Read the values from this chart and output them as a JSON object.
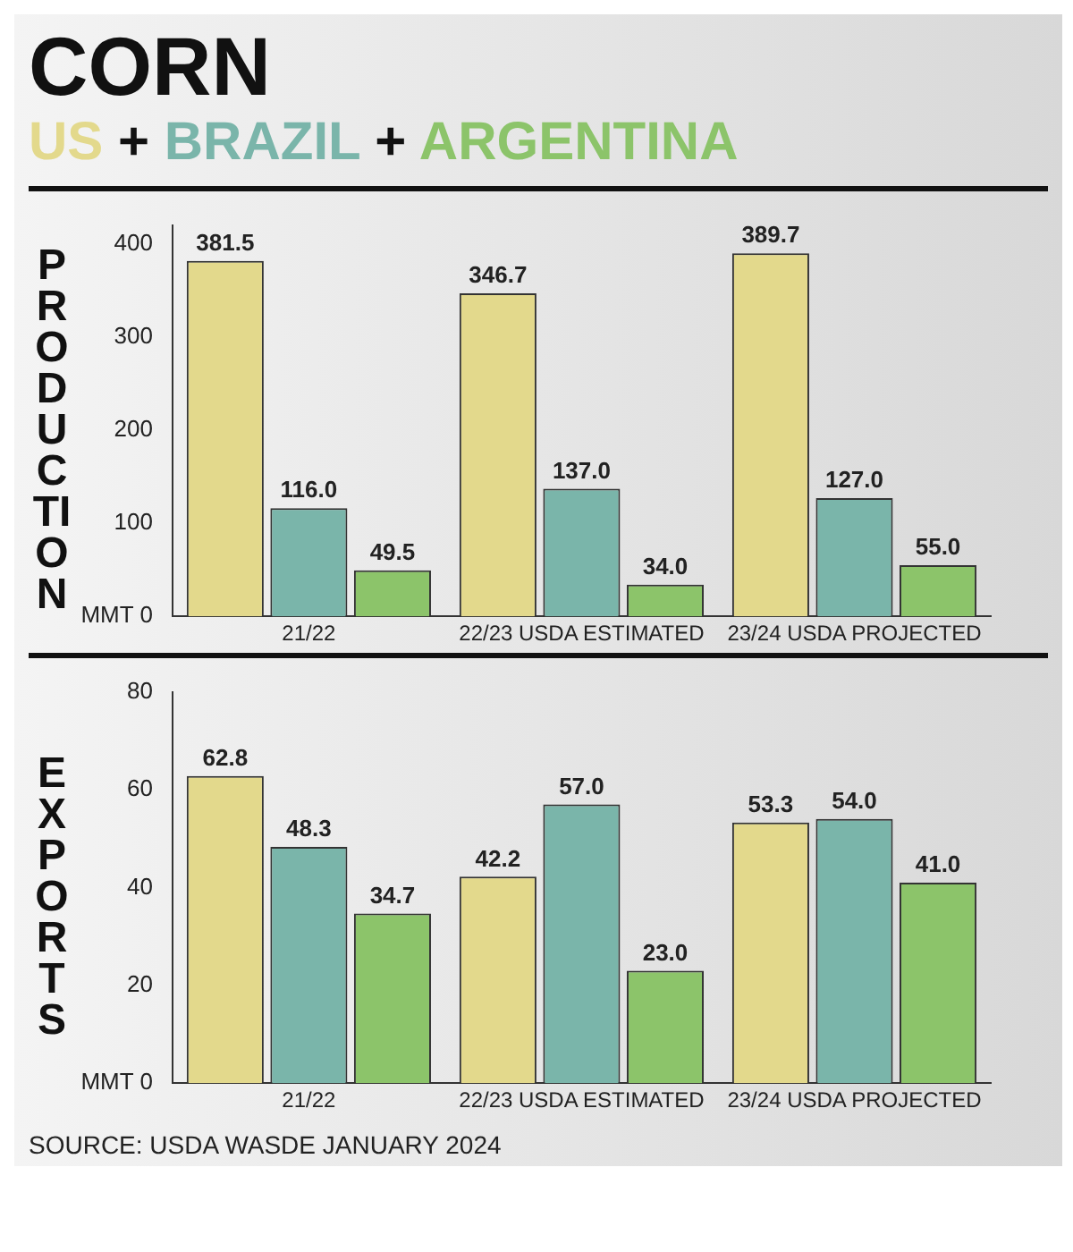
{
  "chart_data": [
    {
      "type": "bar",
      "title": "CORN",
      "subtitle": "US + BRAZIL + ARGENTINA",
      "ylabel": "PRODUCTION",
      "categories": [
        "21/22",
        "22/23 USDA ESTIMATED",
        "23/24 USDA PROJECTED"
      ],
      "series": [
        {
          "color": "#e3d98c",
          "values": [
            381.5,
            346.7,
            389.7
          ],
          "value_labels": [
            "381.5",
            "346.7",
            "389.7"
          ]
        },
        {
          "color": "#7ab5aa",
          "values": [
            116.0,
            137.0,
            127.0
          ],
          "value_labels": [
            "116.0",
            "137.0",
            "127.0"
          ]
        },
        {
          "color": "#8cc46a",
          "values": [
            49.5,
            34.0,
            55.0
          ],
          "value_labels": [
            "49.5",
            "34.0",
            "55.0"
          ]
        }
      ],
      "ylim": [
        0,
        420
      ],
      "yticks": [
        {
          "value": 0,
          "label": "MMT 0"
        },
        100,
        200,
        300,
        400
      ],
      "grid": false,
      "legend": false
    },
    {
      "type": "bar",
      "ylabel": "EXPORTS",
      "categories": [
        "21/22",
        "22/23 USDA ESTIMATED",
        "23/24 USDA PROJECTED"
      ],
      "series": [
        {
          "color": "#e3d98c",
          "values": [
            62.8,
            42.2,
            53.3
          ],
          "value_labels": [
            "62.8",
            "42.2",
            "53.3"
          ]
        },
        {
          "color": "#7ab5aa",
          "values": [
            48.3,
            57.0,
            54.0
          ],
          "value_labels": [
            "48.3",
            "57.0",
            "54.0"
          ]
        },
        {
          "color": "#8cc46a",
          "values": [
            34.7,
            23.0,
            41.0
          ],
          "value_labels": [
            "34.7",
            "23.0",
            "41.0"
          ]
        }
      ],
      "ylim": [
        0,
        80
      ],
      "yticks": [
        {
          "value": 0,
          "label": "MMT 0"
        },
        20,
        40,
        60,
        80
      ],
      "grid": false,
      "legend": false,
      "annotations": [
        "SOURCE: USDA WASDE JANUARY 2024"
      ]
    }
  ]
}
